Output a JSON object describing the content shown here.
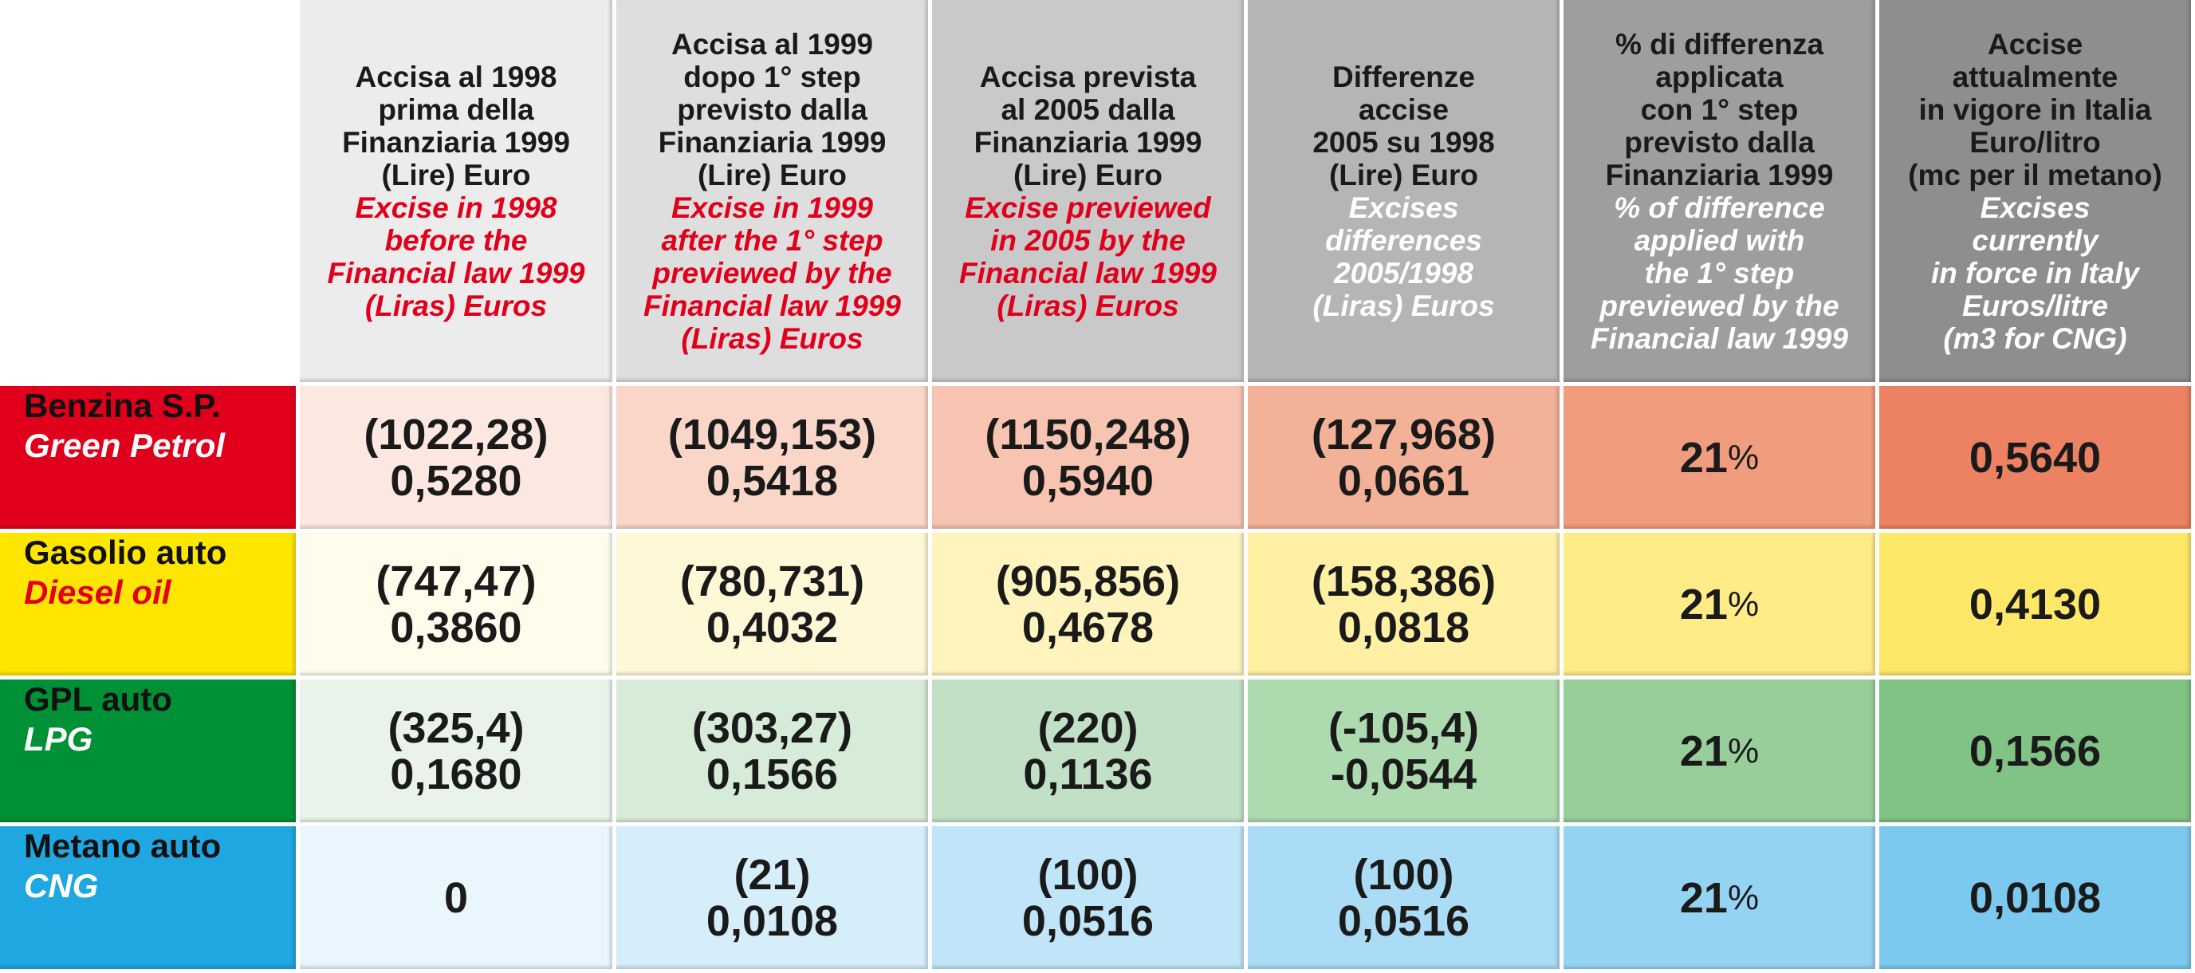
{
  "headers": [
    {
      "it": "Accisa al 1998\nprima della\nFinanziaria 1999\n(Lire) Euro",
      "en": "Excise in 1998\nbefore the\nFinancial law 1999\n(Liras) Euros"
    },
    {
      "it": "Accisa al 1999\ndopo 1° step\nprevisto dalla\nFinanziaria 1999\n(Lire) Euro",
      "en": "Excise in 1999\nafter the 1° step\npreviewed by the\nFinancial law 1999\n(Liras) Euros"
    },
    {
      "it": "Accisa prevista\nal 2005 dalla\nFinanziaria 1999\n(Lire) Euro",
      "en": "Excise previewed\nin 2005 by the\nFinancial law 1999\n(Liras) Euros"
    },
    {
      "it": "Differenze\naccise\n2005 su 1998\n(Lire) Euro",
      "en": "Excises\ndifferences\n2005/1998\n(Liras) Euros"
    },
    {
      "it": "% di differenza\napplicata\ncon 1° step\nprevisto dalla\nFinanziaria 1999",
      "en": "% of difference\napplied with\nthe 1° step\npreviewed by the\nFinancial law 1999"
    },
    {
      "it": "Accise\nattualmente\nin vigore in Italia\nEuro/litro\n(mc per il metano)",
      "en": "Excises\ncurrently\nin force in Italy\nEuros/litre\n(m3 for CNG)"
    }
  ],
  "rows": [
    {
      "it": "Benzina S.P.",
      "en": "Green Petrol",
      "cells": [
        [
          "(1022,28)",
          "0,5280"
        ],
        [
          "(1049,153)",
          "0,5418"
        ],
        [
          "(1150,248)",
          "0,5940"
        ],
        [
          "(127,968)",
          "0,0661"
        ]
      ],
      "pct_num": "21",
      "pct_sign": "%",
      "current": "0,5640"
    },
    {
      "it": "Gasolio auto",
      "en": "Diesel oil",
      "cells": [
        [
          "(747,47)",
          "0,3860"
        ],
        [
          "(780,731)",
          "0,4032"
        ],
        [
          "(905,856)",
          "0,4678"
        ],
        [
          "(158,386)",
          "0,0818"
        ]
      ],
      "pct_num": "21",
      "pct_sign": "%",
      "current": "0,4130"
    },
    {
      "it": "GPL auto",
      "en": "LPG",
      "cells": [
        [
          "(325,4)",
          "0,1680"
        ],
        [
          "(303,27)",
          "0,1566"
        ],
        [
          "(220)",
          "0,1136"
        ],
        [
          "(-105,4)",
          "-0,0544"
        ]
      ],
      "pct_num": "21",
      "pct_sign": "%",
      "current": "0,1566"
    },
    {
      "it": "Metano auto",
      "en": "CNG",
      "cells": [
        [
          "0",
          ""
        ],
        [
          "(21)",
          "0,0108"
        ],
        [
          "(100)",
          "0,0516"
        ],
        [
          "(100)",
          "0,0516"
        ]
      ],
      "pct_num": "21",
      "pct_sign": "%",
      "current": "0,0108"
    }
  ],
  "colors": {
    "header": [
      "#ececec",
      "#dedede",
      "#c9c9c9",
      "#b5b5b5",
      "#9e9e9e",
      "#8e8e8e"
    ],
    "row_label": [
      "#e0001b",
      "#ffe600",
      "#009035",
      "#1ea7e1"
    ],
    "row_cells": [
      [
        "#fde8e1",
        "#f9d6c8",
        "#f6c4b0",
        "#f3b298",
        "#f09c7e",
        "#ec8261"
      ],
      [
        "#fffcec",
        "#fff8d6",
        "#fff4bd",
        "#fff0a3",
        "#ffec87",
        "#ffe768"
      ],
      [
        "#e9f3ea",
        "#d7ebd9",
        "#c2e0c5",
        "#addaaf",
        "#97ce9a",
        "#81c285"
      ],
      [
        "#eaf6fd",
        "#d6eefa",
        "#c1e5f8",
        "#abdcf5",
        "#95d3f3",
        "#7cc9f0"
      ]
    ]
  }
}
